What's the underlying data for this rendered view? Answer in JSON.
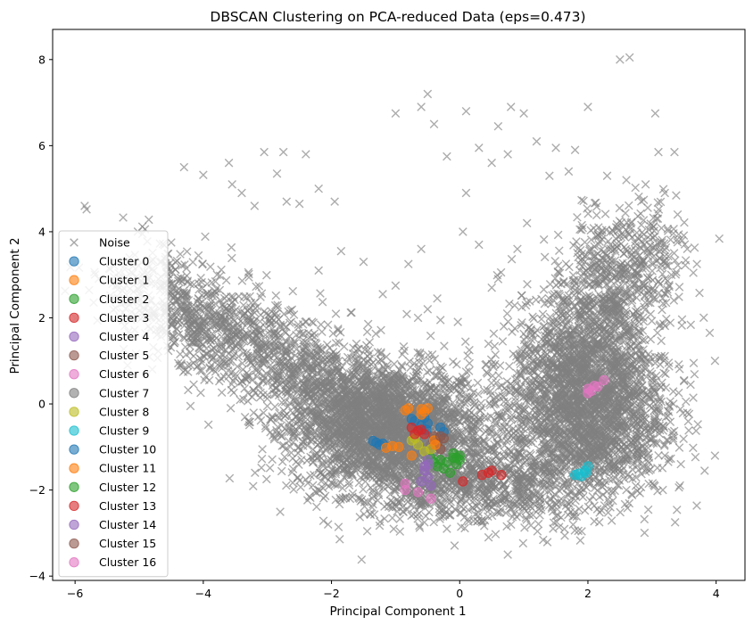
{
  "chart_data": {
    "type": "scatter",
    "title": "DBSCAN Clustering on PCA-reduced Data (eps=0.473)",
    "xlabel": "Principal Component 1",
    "ylabel": "Principal Component 2",
    "xlim": [
      -6.35,
      4.45
    ],
    "ylim": [
      -4.1,
      8.7
    ],
    "xticks": [
      -6,
      -4,
      -2,
      0,
      2,
      4
    ],
    "yticks": [
      -4,
      -2,
      0,
      2,
      4,
      6,
      8
    ],
    "grid": false,
    "legend": {
      "position": "lower-left"
    },
    "noise": {
      "name": "Noise",
      "color": "#808080",
      "marker": "x",
      "outliers": [
        [
          -5.85,
          4.6
        ],
        [
          -5.82,
          4.52
        ],
        [
          -5.25,
          4.33
        ],
        [
          -4.85,
          4.28
        ],
        [
          -4.95,
          4.12
        ],
        [
          -4.3,
          5.5
        ],
        [
          -4.0,
          5.32
        ],
        [
          -3.6,
          5.6
        ],
        [
          -3.55,
          5.1
        ],
        [
          -3.05,
          5.85
        ],
        [
          -2.75,
          5.85
        ],
        [
          -2.4,
          5.8
        ],
        [
          -2.85,
          5.35
        ],
        [
          -2.2,
          5.0
        ],
        [
          -1.95,
          4.7
        ],
        [
          -2.5,
          4.65
        ],
        [
          -3.4,
          4.9
        ],
        [
          -3.2,
          4.6
        ],
        [
          -2.7,
          4.7
        ],
        [
          -4.5,
          3.75
        ],
        [
          -4.95,
          3.95
        ],
        [
          -5.1,
          3.2
        ],
        [
          -4.7,
          2.9
        ],
        [
          -4.6,
          2.6
        ],
        [
          -4.2,
          0.9
        ],
        [
          -4.15,
          0.45
        ],
        [
          -4.2,
          -0.05
        ],
        [
          -3.9,
          0.85
        ],
        [
          -1.0,
          6.75
        ],
        [
          -0.6,
          6.9
        ],
        [
          -0.5,
          7.2
        ],
        [
          -0.4,
          6.5
        ],
        [
          -0.2,
          5.75
        ],
        [
          0.1,
          6.8
        ],
        [
          0.6,
          6.45
        ],
        [
          0.8,
          6.9
        ],
        [
          1.0,
          6.75
        ],
        [
          1.2,
          6.1
        ],
        [
          0.3,
          5.95
        ],
        [
          0.5,
          5.6
        ],
        [
          0.75,
          5.8
        ],
        [
          1.5,
          5.95
        ],
        [
          1.8,
          5.9
        ],
        [
          2.0,
          6.9
        ],
        [
          2.5,
          8.0
        ],
        [
          2.65,
          8.05
        ],
        [
          3.05,
          6.75
        ],
        [
          3.1,
          5.85
        ],
        [
          3.35,
          5.85
        ],
        [
          1.4,
          5.3
        ],
        [
          1.7,
          5.4
        ],
        [
          2.3,
          5.3
        ],
        [
          2.6,
          5.2
        ],
        [
          2.9,
          5.1
        ],
        [
          3.2,
          4.9
        ],
        [
          3.4,
          4.4
        ],
        [
          3.55,
          3.6
        ],
        [
          3.7,
          3.25
        ],
        [
          3.9,
          1.65
        ],
        [
          3.65,
          0.95
        ],
        [
          3.5,
          0.55
        ],
        [
          -0.8,
          3.25
        ],
        [
          -0.35,
          2.45
        ],
        [
          -0.3,
          1.95
        ],
        [
          0.15,
          1.25
        ],
        [
          -0.65,
          2.0
        ],
        [
          -0.5,
          2.2
        ],
        [
          0.5,
          2.7
        ],
        [
          0.6,
          2.9
        ],
        [
          0.75,
          -3.5
        ],
        [
          0.45,
          -3.1
        ],
        [
          -1.05,
          -2.65
        ],
        [
          -0.95,
          -2.3
        ],
        [
          1.85,
          -2.95
        ],
        [
          1.5,
          -2.6
        ],
        [
          2.35,
          -2.4
        ],
        [
          2.6,
          -2.0
        ],
        [
          -2.85,
          -0.7
        ],
        [
          -3.3,
          -0.4
        ],
        [
          -1.75,
          -1.6
        ],
        [
          0.85,
          -2.55
        ],
        [
          1.1,
          -2.25
        ],
        [
          3.2,
          -1.2
        ],
        [
          3.45,
          -1.4
        ],
        [
          0.1,
          4.9
        ],
        [
          0.05,
          4.0
        ],
        [
          -0.6,
          3.6
        ],
        [
          0.3,
          3.7
        ],
        [
          0.9,
          3.6
        ],
        [
          1.05,
          4.2
        ],
        [
          -1.5,
          3.3
        ],
        [
          -1.2,
          2.55
        ],
        [
          -1.85,
          3.55
        ],
        [
          -2.2,
          3.1
        ],
        [
          -1.0,
          2.75
        ],
        [
          0.35,
          -2.75
        ],
        [
          -0.2,
          -2.9
        ],
        [
          -0.55,
          -2.75
        ],
        [
          -1.4,
          -2.55
        ]
      ]
    },
    "clusters": [
      {
        "name": "Cluster 0",
        "color": "#1f77b4",
        "points": [
          [
            -1.3,
            -0.9
          ],
          [
            -1.25,
            -0.95
          ],
          [
            -1.2,
            -0.92
          ],
          [
            -1.35,
            -0.86
          ],
          [
            -0.75,
            -0.35
          ],
          [
            -0.7,
            -0.4
          ],
          [
            -0.55,
            -0.32
          ],
          [
            -0.5,
            -0.45
          ],
          [
            -0.6,
            -0.5
          ],
          [
            -0.52,
            -0.6
          ]
        ]
      },
      {
        "name": "Cluster 1",
        "color": "#ff7f0e",
        "points": [
          [
            -0.85,
            -0.15
          ],
          [
            -0.8,
            -0.1
          ],
          [
            -0.6,
            -0.12
          ],
          [
            -0.55,
            -0.18
          ],
          [
            -0.5,
            -0.1
          ],
          [
            -0.6,
            -0.25
          ],
          [
            -0.95,
            -1.0
          ],
          [
            -1.05,
            -0.98
          ],
          [
            -1.15,
            -1.02
          ],
          [
            -0.75,
            -1.2
          ]
        ]
      },
      {
        "name": "Cluster 2",
        "color": "#2ca02c",
        "points": [
          [
            -0.45,
            -1.25
          ],
          [
            -0.3,
            -1.3
          ],
          [
            -0.2,
            -1.35
          ],
          [
            -0.1,
            -1.25
          ],
          [
            0.0,
            -1.2
          ],
          [
            -0.05,
            -1.4
          ],
          [
            -0.25,
            -1.5
          ],
          [
            -0.35,
            -1.45
          ],
          [
            -0.15,
            -1.6
          ],
          [
            -0.4,
            -1.35
          ]
        ]
      },
      {
        "name": "Cluster 3",
        "color": "#d62728",
        "points": [
          [
            0.35,
            -1.65
          ],
          [
            0.45,
            -1.6
          ],
          [
            0.5,
            -1.55
          ],
          [
            0.65,
            -1.65
          ],
          [
            0.05,
            -1.8
          ],
          [
            -0.6,
            -0.6
          ],
          [
            -0.55,
            -0.7
          ]
        ]
      },
      {
        "name": "Cluster 4",
        "color": "#9467bd",
        "points": [
          [
            -0.55,
            -1.55
          ],
          [
            -0.5,
            -1.7
          ],
          [
            -0.6,
            -1.8
          ],
          [
            -0.45,
            -1.9
          ],
          [
            -0.55,
            -1.45
          ]
        ]
      },
      {
        "name": "Cluster 5",
        "color": "#8c564b",
        "points": [
          [
            -0.4,
            -0.75
          ],
          [
            -0.35,
            -0.9
          ],
          [
            -0.3,
            -1.05
          ],
          [
            -0.45,
            -0.95
          ]
        ]
      },
      {
        "name": "Cluster 6",
        "color": "#e377c2",
        "points": [
          [
            2.0,
            0.25
          ],
          [
            2.05,
            0.3
          ],
          [
            2.1,
            0.42
          ],
          [
            2.25,
            0.55
          ],
          [
            2.0,
            0.35
          ],
          [
            2.15,
            0.4
          ]
        ]
      },
      {
        "name": "Cluster 7",
        "color": "#7f7f7f",
        "points": [
          [
            -0.55,
            -0.95
          ],
          [
            -0.6,
            -1.05
          ]
        ]
      },
      {
        "name": "Cluster 8",
        "color": "#bcbd22",
        "points": [
          [
            -0.7,
            -0.8
          ],
          [
            -0.65,
            -0.95
          ],
          [
            -0.55,
            -1.1
          ],
          [
            -0.45,
            -1.05
          ],
          [
            -0.75,
            -0.85
          ]
        ]
      },
      {
        "name": "Cluster 9",
        "color": "#17becf",
        "points": [
          [
            1.8,
            -1.65
          ],
          [
            1.85,
            -1.62
          ],
          [
            1.9,
            -1.68
          ],
          [
            1.95,
            -1.55
          ],
          [
            2.0,
            -1.45
          ],
          [
            1.97,
            -1.6
          ]
        ]
      },
      {
        "name": "Cluster 10",
        "color": "#1f77b4",
        "points": [
          [
            -0.3,
            -0.55
          ],
          [
            -0.25,
            -0.65
          ]
        ]
      },
      {
        "name": "Cluster 11",
        "color": "#ff7f0e",
        "points": [
          [
            -0.4,
            -0.85
          ],
          [
            -0.38,
            -0.95
          ]
        ]
      },
      {
        "name": "Cluster 12",
        "color": "#2ca02c",
        "points": [
          [
            -0.1,
            -1.15
          ],
          [
            -0.05,
            -1.25
          ],
          [
            0.0,
            -1.3
          ]
        ]
      },
      {
        "name": "Cluster 13",
        "color": "#d62728",
        "points": [
          [
            -0.75,
            -0.55
          ],
          [
            -0.7,
            -0.7
          ],
          [
            -0.65,
            -0.62
          ]
        ]
      },
      {
        "name": "Cluster 14",
        "color": "#9467bd",
        "points": [
          [
            -0.5,
            -1.3
          ],
          [
            -0.48,
            -1.4
          ]
        ]
      },
      {
        "name": "Cluster 15",
        "color": "#8c564b",
        "points": [
          [
            -0.3,
            -0.75
          ],
          [
            -0.25,
            -0.8
          ]
        ]
      },
      {
        "name": "Cluster 16",
        "color": "#e377c2",
        "points": [
          [
            -0.85,
            -1.85
          ],
          [
            -0.85,
            -2.0
          ],
          [
            -0.65,
            -2.05
          ],
          [
            -0.45,
            -2.2
          ]
        ]
      }
    ]
  }
}
